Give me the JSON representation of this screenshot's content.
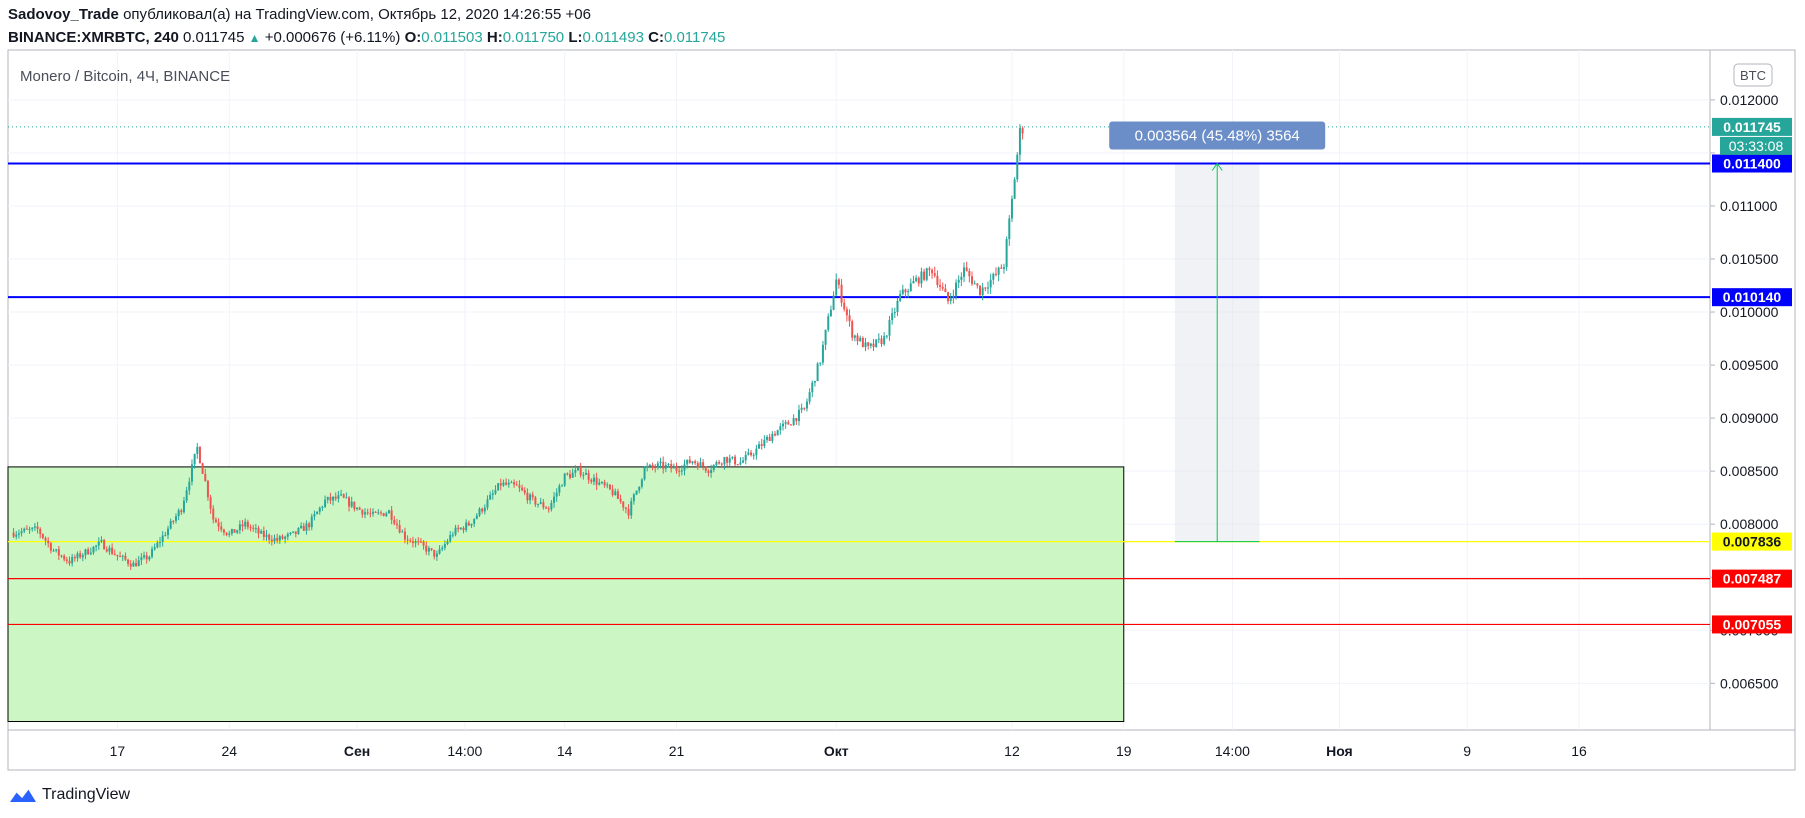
{
  "header": {
    "author": "Sadovoy_Trade",
    "published": "опубликовал(а) на TradingView.com, Октябрь 12, 2020 14:26:55 +06",
    "symbol": "BINANCE:XMRBTC, 240",
    "last": "0.011745",
    "change": "+0.000676 (+6.11%)",
    "o_label": "O:",
    "o": "0.011503",
    "h_label": "H:",
    "h": "0.011750",
    "l_label": "L:",
    "l": "0.011493",
    "c_label": "C:",
    "c": "0.011745"
  },
  "legend": "Monero / Bitcoin, 4Ч, BINANCE",
  "currency_button": "BTC",
  "footer": {
    "brand": "TradingView"
  },
  "colors": {
    "up": "#26a69a",
    "down": "#ef5350",
    "blue_line": "#0000ff",
    "yellow_line": "#ffff00",
    "red_line": "#ff0000",
    "zone_fill": "#ccf7c4",
    "price_label": "#26a69a",
    "measure_label": "#6b8ec9"
  },
  "chart_data": {
    "type": "candlestick",
    "y_ticks": [
      "0.012000",
      "0.011500",
      "0.011000",
      "0.010500",
      "0.010000",
      "0.009500",
      "0.009000",
      "0.008500",
      "0.008000",
      "0.007500",
      "0.007000",
      "0.006500"
    ],
    "y_tick_values": [
      0.012,
      0.0115,
      0.011,
      0.0105,
      0.01,
      0.0095,
      0.009,
      0.0085,
      0.008,
      0.0075,
      0.007,
      0.0065
    ],
    "ylim": [
      0.00606,
      0.01247
    ],
    "x_ticks": [
      {
        "label": "17",
        "t": 5.0
      },
      {
        "label": "24",
        "t": 12.0
      },
      {
        "label": "Сен",
        "t": 20.0
      },
      {
        "label": "14:00",
        "t": 26.75
      },
      {
        "label": "14",
        "t": 33.0
      },
      {
        "label": "21",
        "t": 40.0
      },
      {
        "label": "Окт",
        "t": 50.0
      },
      {
        "label": "12",
        "t": 61.0
      },
      {
        "label": "19",
        "t": 68.0
      },
      {
        "label": "14:00",
        "t": 74.8
      },
      {
        "label": "Ноя",
        "t": 81.5
      },
      {
        "label": "9",
        "t": 89.5
      },
      {
        "label": "16",
        "t": 96.5
      }
    ],
    "x_units": "days since Aug 12, 2020",
    "xlim": [
      -1.85,
      104.7
    ],
    "anchors": [
      [
        -1.5,
        0.00792
      ],
      [
        0,
        0.00795
      ],
      [
        1,
        0.00775
      ],
      [
        2,
        0.00765
      ],
      [
        4,
        0.00782
      ],
      [
        5,
        0.0077
      ],
      [
        6,
        0.00762
      ],
      [
        7,
        0.0077
      ],
      [
        8,
        0.00792
      ],
      [
        9,
        0.00815
      ],
      [
        10,
        0.00872
      ],
      [
        10.5,
        0.0084
      ],
      [
        11,
        0.00805
      ],
      [
        12,
        0.0079
      ],
      [
        13,
        0.008
      ],
      [
        14,
        0.0079
      ],
      [
        15,
        0.00785
      ],
      [
        16,
        0.0079
      ],
      [
        17,
        0.008
      ],
      [
        18,
        0.00822
      ],
      [
        19,
        0.00825
      ],
      [
        20,
        0.00815
      ],
      [
        21,
        0.00808
      ],
      [
        22,
        0.00812
      ],
      [
        23,
        0.00788
      ],
      [
        24,
        0.0078
      ],
      [
        25,
        0.0077
      ],
      [
        26,
        0.00792
      ],
      [
        27,
        0.008
      ],
      [
        28,
        0.00818
      ],
      [
        29,
        0.00838
      ],
      [
        30,
        0.00835
      ],
      [
        31,
        0.00822
      ],
      [
        32,
        0.00815
      ],
      [
        33,
        0.00845
      ],
      [
        34,
        0.0085
      ],
      [
        35,
        0.0084
      ],
      [
        36,
        0.0083
      ],
      [
        37,
        0.00812
      ],
      [
        38,
        0.00852
      ],
      [
        39,
        0.00855
      ],
      [
        40,
        0.00852
      ],
      [
        41,
        0.0086
      ],
      [
        42,
        0.00852
      ],
      [
        43,
        0.00862
      ],
      [
        44,
        0.00858
      ],
      [
        45,
        0.0087
      ],
      [
        46,
        0.00885
      ],
      [
        47,
        0.00895
      ],
      [
        48,
        0.00908
      ],
      [
        49,
        0.00955
      ],
      [
        50,
        0.0103
      ],
      [
        51,
        0.0098
      ],
      [
        52,
        0.00965
      ],
      [
        53,
        0.00975
      ],
      [
        54,
        0.01015
      ],
      [
        55,
        0.0103
      ],
      [
        56,
        0.0104
      ],
      [
        57,
        0.0101
      ],
      [
        58,
        0.0104
      ],
      [
        59,
        0.0102
      ],
      [
        60,
        0.01035
      ],
      [
        60.5,
        0.01045
      ],
      [
        61,
        0.01105
      ],
      [
        61.5,
        0.0117
      ],
      [
        61.8,
        0.011745
      ]
    ],
    "series_note": "OHLC candles, 4h",
    "horizontal_levels": [
      {
        "name": "resistance-1",
        "value": 0.0114,
        "label": "0.011400",
        "color": "#0000ff"
      },
      {
        "name": "resistance-2",
        "value": 0.01014,
        "label": "0.010140",
        "color": "#0000ff"
      },
      {
        "name": "support-yellow",
        "value": 0.007836,
        "label": "0.007836",
        "color": "#ffff00"
      },
      {
        "name": "support-red-1",
        "value": 0.007487,
        "label": "0.007487",
        "color": "#ff0000"
      },
      {
        "name": "support-red-2",
        "value": 0.007055,
        "label": "0.007055",
        "color": "#ff0000"
      }
    ],
    "last_price": {
      "value": 0.011745,
      "label": "0.011745",
      "countdown": "03:33:08"
    },
    "zone": {
      "t0": -1.85,
      "t1": 68.0,
      "y_top": 0.00854,
      "y_bottom": 0.00614
    },
    "measure": {
      "t0": 71.2,
      "t1": 76.5,
      "from": 0.007836,
      "to": 0.0114,
      "label": "0.003564 (45.48%) 3564"
    }
  }
}
